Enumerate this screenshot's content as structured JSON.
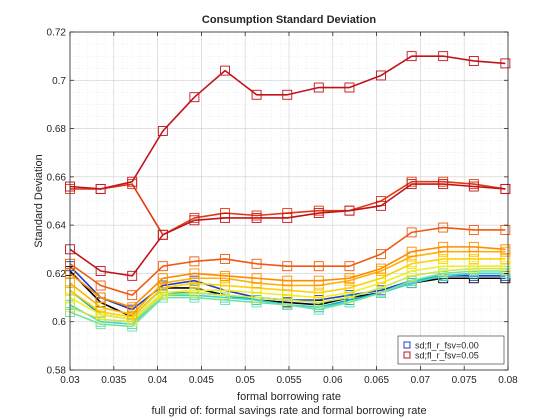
{
  "chart_data": {
    "type": "line",
    "title": "Consumption Standard Deviation",
    "xlabel": "formal borrowing rate",
    "ylabel": "Standard Deviation",
    "footnote": "full grid of: formal savings rate and formal borrowing rate",
    "xlim": [
      0.03,
      0.08
    ],
    "ylim": [
      0.58,
      0.72
    ],
    "xticks": [
      "0.03",
      "0.035",
      "0.04",
      "0.045",
      "0.05",
      "0.055",
      "0.06",
      "0.065",
      "0.07",
      "0.075",
      "0.08"
    ],
    "yticks": [
      "0.58",
      "0.6",
      "0.62",
      "0.64",
      "0.66",
      "0.68",
      "0.7",
      "0.72"
    ],
    "grid": true,
    "legend_position": "bottom-right",
    "legend": [
      {
        "label": "sd;fl_r_fsv=0.00",
        "color": "#1f3fbf"
      },
      {
        "label": "sd;fl_r_fsv=0.05",
        "color": "#c0141c"
      }
    ],
    "x": [
      0.03,
      0.0335,
      0.0371,
      0.0406,
      0.0442,
      0.0477,
      0.0513,
      0.0548,
      0.0584,
      0.0619,
      0.0655,
      0.069,
      0.0726,
      0.0761,
      0.0797
    ],
    "series": [
      {
        "color": "#1f3fbf",
        "values": [
          0.623,
          0.61,
          0.605,
          0.615,
          0.617,
          0.613,
          0.61,
          0.609,
          0.609,
          0.611,
          0.613,
          0.617,
          0.619,
          0.619,
          0.619
        ]
      },
      {
        "color": "#000000",
        "values": [
          0.621,
          0.608,
          0.602,
          0.614,
          0.614,
          0.611,
          0.609,
          0.608,
          0.607,
          0.61,
          0.612,
          0.616,
          0.618,
          0.618,
          0.618
        ]
      },
      {
        "color": "#00aacc",
        "values": [
          0.613,
          0.603,
          0.601,
          0.612,
          0.612,
          0.611,
          0.609,
          0.607,
          0.606,
          0.609,
          0.612,
          0.617,
          0.619,
          0.62,
          0.62
        ]
      },
      {
        "color": "#3fd6c8",
        "values": [
          0.607,
          0.6,
          0.599,
          0.611,
          0.611,
          0.61,
          0.609,
          0.607,
          0.606,
          0.608,
          0.612,
          0.616,
          0.619,
          0.62,
          0.62
        ]
      },
      {
        "color": "#70e0a0",
        "values": [
          0.604,
          0.599,
          0.598,
          0.61,
          0.61,
          0.609,
          0.608,
          0.607,
          0.605,
          0.608,
          0.612,
          0.617,
          0.62,
          0.621,
          0.621
        ]
      },
      {
        "color": "#c8e650",
        "values": [
          0.606,
          0.601,
          0.6,
          0.611,
          0.612,
          0.611,
          0.61,
          0.609,
          0.608,
          0.61,
          0.614,
          0.619,
          0.621,
          0.622,
          0.622
        ]
      },
      {
        "color": "#f0f020",
        "values": [
          0.61,
          0.603,
          0.601,
          0.612,
          0.613,
          0.613,
          0.612,
          0.611,
          0.61,
          0.612,
          0.616,
          0.621,
          0.623,
          0.623,
          0.623
        ]
      },
      {
        "color": "#ffd000",
        "values": [
          0.613,
          0.604,
          0.602,
          0.614,
          0.616,
          0.615,
          0.614,
          0.613,
          0.612,
          0.614,
          0.618,
          0.624,
          0.626,
          0.626,
          0.626
        ]
      },
      {
        "color": "#ffb000",
        "values": [
          0.616,
          0.606,
          0.603,
          0.616,
          0.618,
          0.618,
          0.616,
          0.615,
          0.615,
          0.617,
          0.621,
          0.627,
          0.629,
          0.629,
          0.629
        ]
      },
      {
        "color": "#ff8a00",
        "values": [
          0.62,
          0.61,
          0.606,
          0.618,
          0.62,
          0.619,
          0.618,
          0.617,
          0.617,
          0.618,
          0.622,
          0.629,
          0.631,
          0.631,
          0.63
        ]
      },
      {
        "color": "#f05a10",
        "values": [
          0.624,
          0.615,
          0.611,
          0.623,
          0.625,
          0.626,
          0.624,
          0.623,
          0.623,
          0.623,
          0.628,
          0.637,
          0.639,
          0.638,
          0.638
        ]
      },
      {
        "color": "#e03a10",
        "values": [
          0.655,
          0.655,
          0.657,
          0.636,
          0.643,
          0.645,
          0.644,
          0.645,
          0.646,
          0.646,
          0.65,
          0.658,
          0.658,
          0.657,
          0.655
        ]
      },
      {
        "color": "#c0141c",
        "values": [
          0.63,
          0.621,
          0.619,
          0.636,
          0.642,
          0.643,
          0.643,
          0.643,
          0.645,
          0.646,
          0.648,
          0.657,
          0.657,
          0.656,
          0.655
        ]
      },
      {
        "color": "#c0141c",
        "values": [
          0.656,
          0.655,
          0.658,
          0.679,
          0.693,
          0.704,
          0.694,
          0.694,
          0.697,
          0.697,
          0.702,
          0.71,
          0.71,
          0.708,
          0.707
        ]
      }
    ]
  }
}
